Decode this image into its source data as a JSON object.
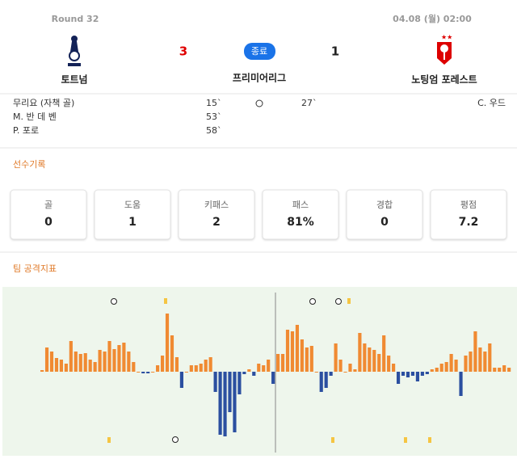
{
  "header": {
    "round": "Round 32",
    "datetime": "04.08 (월) 02:00",
    "home": "토트넘",
    "away": "노팅엄 포레스트",
    "home_score": 3,
    "away_score": 1,
    "status": "종료",
    "competition": "프리미어리그"
  },
  "events": {
    "home": [
      {
        "player": "무리요 (자책 골)",
        "minute": "15`"
      },
      {
        "player": "M. 반 데 벤",
        "minute": "53`"
      },
      {
        "player": "P. 포로",
        "minute": "58`"
      }
    ],
    "away": [
      {
        "player": "C. 우드",
        "minute": "27`"
      }
    ]
  },
  "player_stats": {
    "title": "선수기록",
    "items": [
      {
        "label": "골",
        "value": "0"
      },
      {
        "label": "도움",
        "value": "1"
      },
      {
        "label": "키패스",
        "value": "2"
      },
      {
        "label": "패스",
        "value": "81%"
      },
      {
        "label": "경합",
        "value": "0"
      },
      {
        "label": "평점",
        "value": "7.2"
      }
    ]
  },
  "momentum": {
    "title": "팀 공격지표",
    "values": [
      2,
      30,
      25,
      17,
      15,
      10,
      38,
      25,
      22,
      23,
      15,
      12,
      27,
      25,
      38,
      28,
      33,
      36,
      25,
      12,
      0,
      -2,
      -2,
      0,
      8,
      20,
      72,
      45,
      18,
      -20,
      0,
      8,
      8,
      10,
      15,
      18,
      -25,
      -78,
      -80,
      -50,
      -75,
      -28,
      -3,
      3,
      -5,
      10,
      8,
      15,
      -15,
      22,
      22,
      52,
      50,
      58,
      40,
      30,
      32,
      0,
      -25,
      -20,
      -5,
      35,
      15,
      0,
      10,
      3,
      48,
      35,
      30,
      27,
      22,
      45,
      20,
      10,
      -15,
      -5,
      -7,
      -5,
      -12,
      -5,
      -3,
      3,
      5,
      10,
      12,
      22,
      15,
      -30,
      20,
      25,
      50,
      30,
      25,
      35,
      5,
      5,
      8,
      5
    ]
  }
}
